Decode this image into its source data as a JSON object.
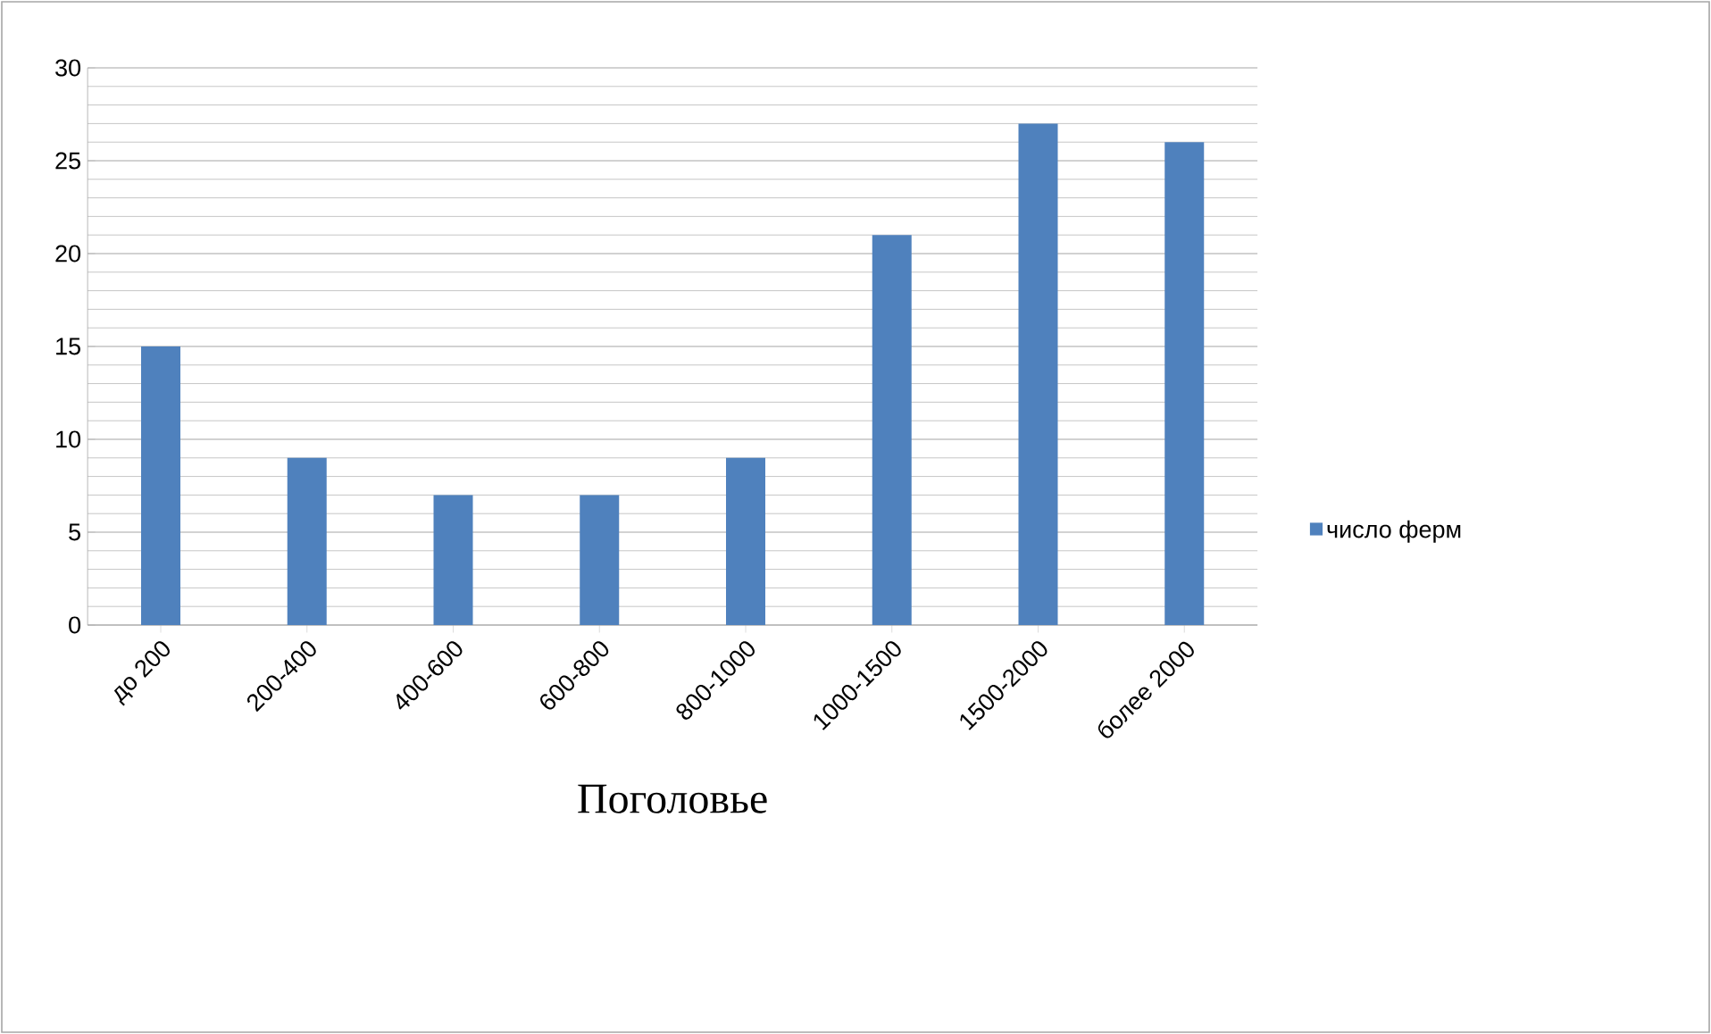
{
  "chart_data": {
    "type": "bar",
    "xlabel": "Поголовье",
    "categories": [
      "до 200",
      "200-400",
      "400-600",
      "600-800",
      "800-1000",
      "1000-1500",
      "1500-2000",
      "более 2000"
    ],
    "series": [
      {
        "name": "число ферм",
        "color": "#4f81bd",
        "values": [
          15,
          9,
          7,
          7,
          9,
          21,
          27,
          26
        ]
      }
    ],
    "ylim": [
      0,
      30
    ],
    "yticks": [
      0,
      5,
      10,
      15,
      20,
      25,
      30
    ],
    "grid": "y",
    "legend": "right"
  }
}
